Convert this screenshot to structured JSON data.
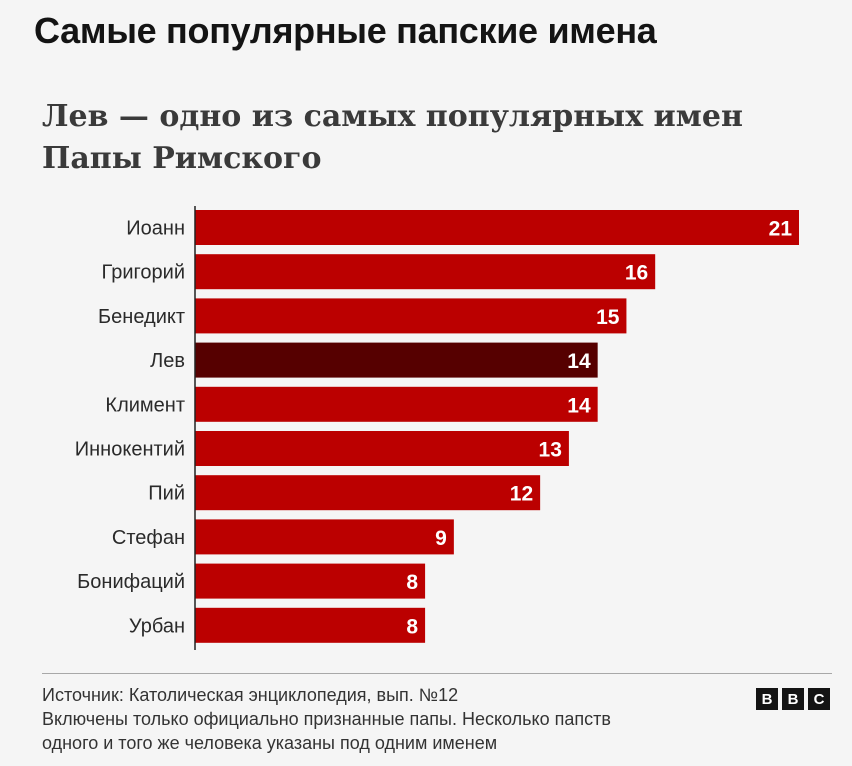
{
  "header": {
    "title": "Самые популярные папские имена",
    "subtitle": "Лев — одно из самых популярных имен Папы Римского"
  },
  "colors": {
    "bar": "#bb0000",
    "highlight": "#560000",
    "label_text": "#ffffff"
  },
  "chart_data": {
    "type": "bar",
    "orientation": "horizontal",
    "title": "Лев — одно из самых популярных имен Папы Римского",
    "categories": [
      "Иоанн",
      "Григорий",
      "Бенедикт",
      "Лев",
      "Климент",
      "Иннокентий",
      "Пий",
      "Стефан",
      "Бонифаций",
      "Урбан"
    ],
    "values": [
      21,
      16,
      15,
      14,
      14,
      13,
      12,
      9,
      8,
      8
    ],
    "highlighted": [
      "Лев"
    ],
    "data_labels": true,
    "xlim": [
      0,
      21
    ],
    "grid": false,
    "legend": "none"
  },
  "footer": {
    "source": "Источник: Католическая энциклопедия, вып. №12",
    "note_line1": "Включены только официально признанные папы. Несколько папств",
    "note_line2": "одного и того же человека указаны под одним именем",
    "logo_letters": [
      "B",
      "B",
      "C"
    ]
  }
}
